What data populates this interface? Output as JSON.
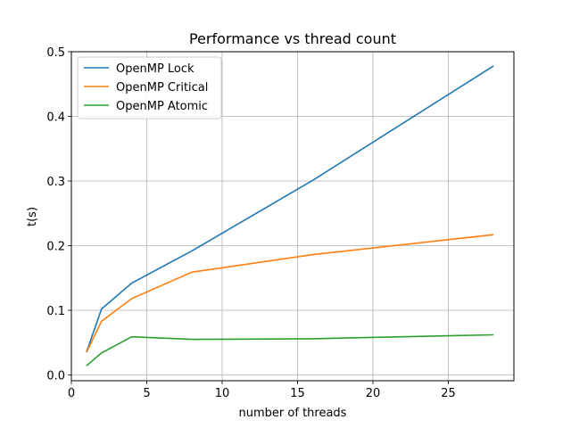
{
  "chart_data": {
    "type": "line",
    "title": "Performance vs thread count",
    "xlabel": "number of threads",
    "ylabel": "t(s)",
    "xlim": [
      0,
      29.35
    ],
    "ylim": [
      -0.009,
      0.5
    ],
    "xticks": [
      0,
      5,
      10,
      15,
      20,
      25
    ],
    "xtick_labels": [
      "0",
      "5",
      "10",
      "15",
      "20",
      "25"
    ],
    "yticks": [
      0.0,
      0.1,
      0.2,
      0.3,
      0.4,
      0.5
    ],
    "ytick_labels": [
      "0.0",
      "0.1",
      "0.2",
      "0.3",
      "0.4",
      "0.5"
    ],
    "grid": true,
    "legend_position": "top-left",
    "x": [
      1,
      2,
      4,
      8,
      16,
      28
    ],
    "series": [
      {
        "name": "OpenMP Lock",
        "color": "#1f77b4",
        "values": [
          0.035,
          0.102,
          0.142,
          0.192,
          0.301,
          0.478
        ]
      },
      {
        "name": "OpenMP Critical",
        "color": "#ff7f0e",
        "values": [
          0.035,
          0.083,
          0.118,
          0.159,
          0.186,
          0.217
        ]
      },
      {
        "name": "OpenMP Atomic",
        "color": "#2ca02c",
        "values": [
          0.014,
          0.034,
          0.059,
          0.055,
          0.056,
          0.062
        ]
      }
    ]
  }
}
